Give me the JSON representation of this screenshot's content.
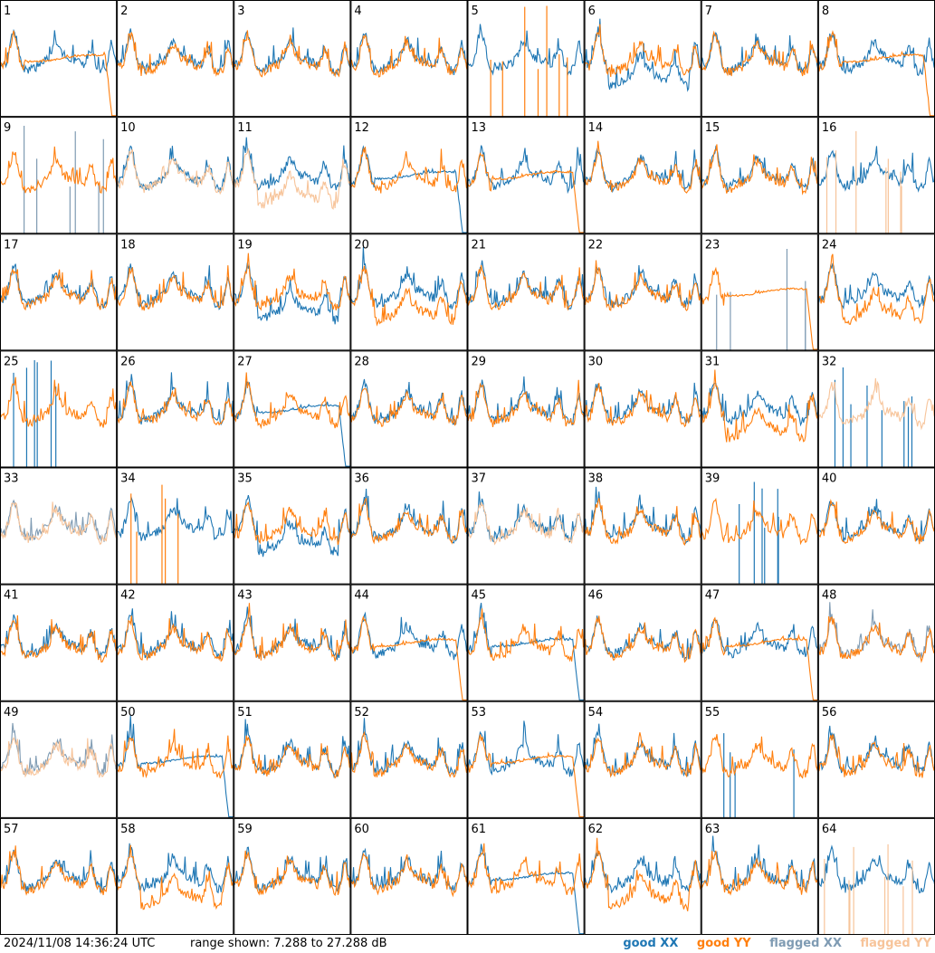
{
  "footer": {
    "timestamp": "2024/11/08 14:36:24 UTC",
    "range": "range shown: 7.288 to 27.288 dB"
  },
  "legend": [
    {
      "label": "good XX",
      "color": "#1f77b4"
    },
    {
      "label": "good YY",
      "color": "#ff7f0e"
    },
    {
      "label": "flagged XX",
      "color": "#7f9bb3"
    },
    {
      "label": "flagged YY",
      "color": "#f7c49a"
    }
  ],
  "chart_data": {
    "type": "line",
    "title": "",
    "ylim": [
      7.288,
      27.288
    ],
    "unit": "dB",
    "layout": "8x8 panel grid",
    "panels": [
      {
        "id": "1",
        "xx": "normal",
        "yy": "dropoff",
        "flag_x": false,
        "flag_y": false
      },
      {
        "id": "2",
        "xx": "normal",
        "yy": "normal",
        "flag_x": false,
        "flag_y": false
      },
      {
        "id": "3",
        "xx": "normal",
        "yy": "normal",
        "flag_x": false,
        "flag_y": false
      },
      {
        "id": "4",
        "xx": "normal",
        "yy": "normal",
        "flag_x": false,
        "flag_y": false
      },
      {
        "id": "5",
        "xx": "normal",
        "yy": "spikes",
        "flag_x": false,
        "flag_y": false
      },
      {
        "id": "6",
        "xx": "low",
        "yy": "normal",
        "flag_x": false,
        "flag_y": false
      },
      {
        "id": "7",
        "xx": "normal",
        "yy": "normal",
        "flag_x": false,
        "flag_y": false
      },
      {
        "id": "8",
        "xx": "normal",
        "yy": "dropoff",
        "flag_x": false,
        "flag_y": false
      },
      {
        "id": "9",
        "xx": "spikes",
        "yy": "normal",
        "flag_x": true,
        "flag_y": false
      },
      {
        "id": "10",
        "xx": "normal",
        "yy": "normal",
        "flag_x": false,
        "flag_y": true
      },
      {
        "id": "11",
        "xx": "normal",
        "yy": "low",
        "flag_x": false,
        "flag_y": true
      },
      {
        "id": "12",
        "xx": "dropoff",
        "yy": "normal",
        "flag_x": false,
        "flag_y": false
      },
      {
        "id": "13",
        "xx": "normal",
        "yy": "dropoff",
        "flag_x": false,
        "flag_y": false
      },
      {
        "id": "14",
        "xx": "normal",
        "yy": "normal",
        "flag_x": false,
        "flag_y": false
      },
      {
        "id": "15",
        "xx": "normal",
        "yy": "normal",
        "flag_x": false,
        "flag_y": false
      },
      {
        "id": "16",
        "xx": "normal",
        "yy": "spikes",
        "flag_x": false,
        "flag_y": true
      },
      {
        "id": "17",
        "xx": "normal",
        "yy": "normal",
        "flag_x": false,
        "flag_y": false
      },
      {
        "id": "18",
        "xx": "normal",
        "yy": "normal",
        "flag_x": false,
        "flag_y": false
      },
      {
        "id": "19",
        "xx": "low",
        "yy": "normal",
        "flag_x": false,
        "flag_y": false
      },
      {
        "id": "20",
        "xx": "normal",
        "yy": "low",
        "flag_x": false,
        "flag_y": false
      },
      {
        "id": "21",
        "xx": "normal",
        "yy": "normal",
        "flag_x": false,
        "flag_y": false
      },
      {
        "id": "22",
        "xx": "normal",
        "yy": "normal",
        "flag_x": false,
        "flag_y": false
      },
      {
        "id": "23",
        "xx": "spikes",
        "yy": "dropoff",
        "flag_x": true,
        "flag_y": false
      },
      {
        "id": "24",
        "xx": "normal",
        "yy": "low",
        "flag_x": false,
        "flag_y": false
      },
      {
        "id": "25",
        "xx": "spikes",
        "yy": "normal",
        "flag_x": false,
        "flag_y": false
      },
      {
        "id": "26",
        "xx": "normal",
        "yy": "normal",
        "flag_x": false,
        "flag_y": false
      },
      {
        "id": "27",
        "xx": "dropoff",
        "yy": "normal",
        "flag_x": false,
        "flag_y": false
      },
      {
        "id": "28",
        "xx": "normal",
        "yy": "normal",
        "flag_x": false,
        "flag_y": false
      },
      {
        "id": "29",
        "xx": "normal",
        "yy": "normal",
        "flag_x": false,
        "flag_y": false
      },
      {
        "id": "30",
        "xx": "normal",
        "yy": "normal",
        "flag_x": false,
        "flag_y": false
      },
      {
        "id": "31",
        "xx": "normal",
        "yy": "low",
        "flag_x": false,
        "flag_y": false
      },
      {
        "id": "32",
        "xx": "spikes",
        "yy": "normal",
        "flag_x": false,
        "flag_y": true
      },
      {
        "id": "33",
        "xx": "normal",
        "yy": "normal",
        "flag_x": true,
        "flag_y": true
      },
      {
        "id": "34",
        "xx": "normal",
        "yy": "spikes",
        "flag_x": false,
        "flag_y": false
      },
      {
        "id": "35",
        "xx": "low",
        "yy": "normal",
        "flag_x": false,
        "flag_y": false
      },
      {
        "id": "36",
        "xx": "normal",
        "yy": "normal",
        "flag_x": false,
        "flag_y": false
      },
      {
        "id": "37",
        "xx": "normal",
        "yy": "normal",
        "flag_x": false,
        "flag_y": true
      },
      {
        "id": "38",
        "xx": "normal",
        "yy": "normal",
        "flag_x": false,
        "flag_y": false
      },
      {
        "id": "39",
        "xx": "spikes",
        "yy": "normal",
        "flag_x": false,
        "flag_y": false
      },
      {
        "id": "40",
        "xx": "normal",
        "yy": "normal",
        "flag_x": false,
        "flag_y": false
      },
      {
        "id": "41",
        "xx": "normal",
        "yy": "normal",
        "flag_x": false,
        "flag_y": false
      },
      {
        "id": "42",
        "xx": "normal",
        "yy": "normal",
        "flag_x": false,
        "flag_y": false
      },
      {
        "id": "43",
        "xx": "normal",
        "yy": "normal",
        "flag_x": false,
        "flag_y": false
      },
      {
        "id": "44",
        "xx": "normal",
        "yy": "dropoff",
        "flag_x": false,
        "flag_y": false
      },
      {
        "id": "45",
        "xx": "dropoff",
        "yy": "normal",
        "flag_x": false,
        "flag_y": false
      },
      {
        "id": "46",
        "xx": "normal",
        "yy": "normal",
        "flag_x": false,
        "flag_y": false
      },
      {
        "id": "47",
        "xx": "normal",
        "yy": "dropoff",
        "flag_x": false,
        "flag_y": false
      },
      {
        "id": "48",
        "xx": "normal",
        "yy": "normal",
        "flag_x": true,
        "flag_y": false
      },
      {
        "id": "49",
        "xx": "normal",
        "yy": "normal",
        "flag_x": true,
        "flag_y": true
      },
      {
        "id": "50",
        "xx": "dropoff",
        "yy": "normal",
        "flag_x": false,
        "flag_y": false
      },
      {
        "id": "51",
        "xx": "normal",
        "yy": "normal",
        "flag_x": false,
        "flag_y": false
      },
      {
        "id": "52",
        "xx": "normal",
        "yy": "normal",
        "flag_x": false,
        "flag_y": false
      },
      {
        "id": "53",
        "xx": "normal",
        "yy": "dropoff",
        "flag_x": false,
        "flag_y": false
      },
      {
        "id": "54",
        "xx": "normal",
        "yy": "normal",
        "flag_x": false,
        "flag_y": false
      },
      {
        "id": "55",
        "xx": "spikes",
        "yy": "normal",
        "flag_x": false,
        "flag_y": false
      },
      {
        "id": "56",
        "xx": "normal",
        "yy": "normal",
        "flag_x": false,
        "flag_y": false
      },
      {
        "id": "57",
        "xx": "normal",
        "yy": "normal",
        "flag_x": false,
        "flag_y": false
      },
      {
        "id": "58",
        "xx": "normal",
        "yy": "low",
        "flag_x": false,
        "flag_y": false
      },
      {
        "id": "59",
        "xx": "normal",
        "yy": "normal",
        "flag_x": false,
        "flag_y": false
      },
      {
        "id": "60",
        "xx": "normal",
        "yy": "normal",
        "flag_x": false,
        "flag_y": false
      },
      {
        "id": "61",
        "xx": "dropoff",
        "yy": "normal",
        "flag_x": false,
        "flag_y": false
      },
      {
        "id": "62",
        "xx": "normal",
        "yy": "low",
        "flag_x": false,
        "flag_y": false
      },
      {
        "id": "63",
        "xx": "normal",
        "yy": "normal",
        "flag_x": false,
        "flag_y": false
      },
      {
        "id": "64",
        "xx": "normal",
        "yy": "spikes",
        "flag_x": false,
        "flag_y": true
      }
    ]
  }
}
